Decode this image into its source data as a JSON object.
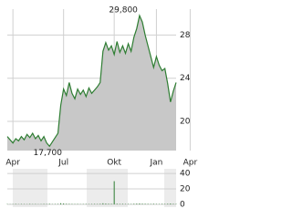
{
  "chart_data": [
    {
      "type": "area",
      "color": "#2e7d32",
      "fill": "#c8c8c8",
      "grid": true,
      "x": [
        0,
        1,
        2,
        3,
        4,
        5,
        6,
        7,
        8,
        9,
        10,
        11,
        12,
        13,
        14,
        15,
        16,
        17,
        18,
        19,
        20,
        21,
        22,
        23,
        24,
        25,
        26,
        27,
        28,
        29,
        30,
        31,
        32,
        33,
        34,
        35,
        36,
        37,
        38,
        39,
        40,
        41,
        42,
        43,
        44,
        45,
        46,
        47,
        48,
        49,
        50,
        51,
        52,
        53,
        54,
        55,
        56,
        57,
        58,
        59,
        60
      ],
      "values": [
        18.6,
        18.3,
        18.0,
        18.4,
        18.2,
        18.6,
        18.3,
        18.8,
        18.5,
        18.9,
        18.4,
        18.7,
        18.2,
        18.6,
        18.0,
        17.7,
        18.1,
        18.5,
        18.9,
        21.5,
        23.0,
        22.4,
        23.6,
        22.6,
        22.1,
        23.0,
        22.5,
        22.9,
        22.3,
        23.1,
        22.6,
        22.9,
        23.2,
        23.6,
        26.5,
        27.3,
        26.6,
        27.0,
        26.2,
        27.4,
        26.4,
        27.0,
        26.3,
        27.2,
        26.5,
        27.8,
        28.6,
        29.8,
        29.2,
        28.0,
        27.0,
        26.0,
        25.0,
        26.0,
        25.2,
        24.7,
        24.9,
        23.5,
        21.8,
        22.8,
        23.6
      ],
      "value_labels": [
        null,
        null,
        null,
        null,
        null,
        null,
        null,
        null,
        null,
        null,
        null,
        null,
        null,
        null,
        null,
        "17,700",
        null,
        null,
        null,
        null,
        null,
        null,
        null,
        null,
        null,
        null,
        null,
        null,
        null,
        null,
        null,
        null,
        null,
        null,
        null,
        null,
        null,
        null,
        null,
        null,
        null,
        null,
        null,
        null,
        null,
        null,
        null,
        "29,800",
        null,
        null,
        null,
        null,
        null,
        null,
        null,
        null,
        null,
        null,
        null,
        null,
        null
      ],
      "xlim": [
        0,
        60
      ],
      "ylim": [
        17.3,
        30.4
      ],
      "yticks": [
        20,
        24,
        28
      ],
      "xticks": [
        {
          "value": 2,
          "label": "Apr"
        },
        {
          "value": 20,
          "label": "Jul"
        },
        {
          "value": 38,
          "label": "Okt"
        },
        {
          "value": 53,
          "label": "Jan"
        },
        {
          "value": 65,
          "label": "Apr"
        }
      ]
    },
    {
      "type": "bar",
      "color": "#2e7d32",
      "grid": true,
      "x": [
        0,
        1,
        2,
        3,
        4,
        5,
        6,
        7,
        8,
        9,
        10,
        11,
        12,
        13,
        14,
        15,
        16,
        17,
        18,
        19,
        20,
        21,
        22,
        23,
        24,
        25,
        26,
        27,
        28,
        29,
        30,
        31,
        32,
        33,
        34,
        35,
        36,
        37,
        38,
        39,
        40,
        41,
        42,
        43,
        44,
        45,
        46,
        47,
        48,
        49,
        50,
        51,
        52,
        53,
        54,
        55,
        56,
        57,
        58,
        59,
        60
      ],
      "values": [
        0.5,
        0.3,
        0.4,
        0.6,
        0.3,
        0.5,
        0.4,
        0.3,
        0.6,
        0.4,
        0.5,
        0.3,
        0.4,
        0.6,
        0.5,
        0.8,
        0.4,
        0.5,
        0.6,
        1.5,
        1.2,
        0.8,
        0.7,
        0.6,
        0.5,
        0.6,
        0.4,
        0.5,
        0.6,
        0.4,
        0.5,
        0.6,
        0.5,
        0.7,
        1.4,
        1.0,
        0.8,
        0.7,
        30,
        0.8,
        0.6,
        0.7,
        0.5,
        0.6,
        0.5,
        0.8,
        1.0,
        1.2,
        0.9,
        0.8,
        0.7,
        0.6,
        0.8,
        0.6,
        0.5,
        0.7,
        0.6,
        0.8,
        1.1,
        0.7,
        0.6
      ],
      "xlim": [
        0,
        60
      ],
      "ylim": [
        0,
        46
      ],
      "yticks": [
        0,
        20,
        40
      ]
    }
  ]
}
